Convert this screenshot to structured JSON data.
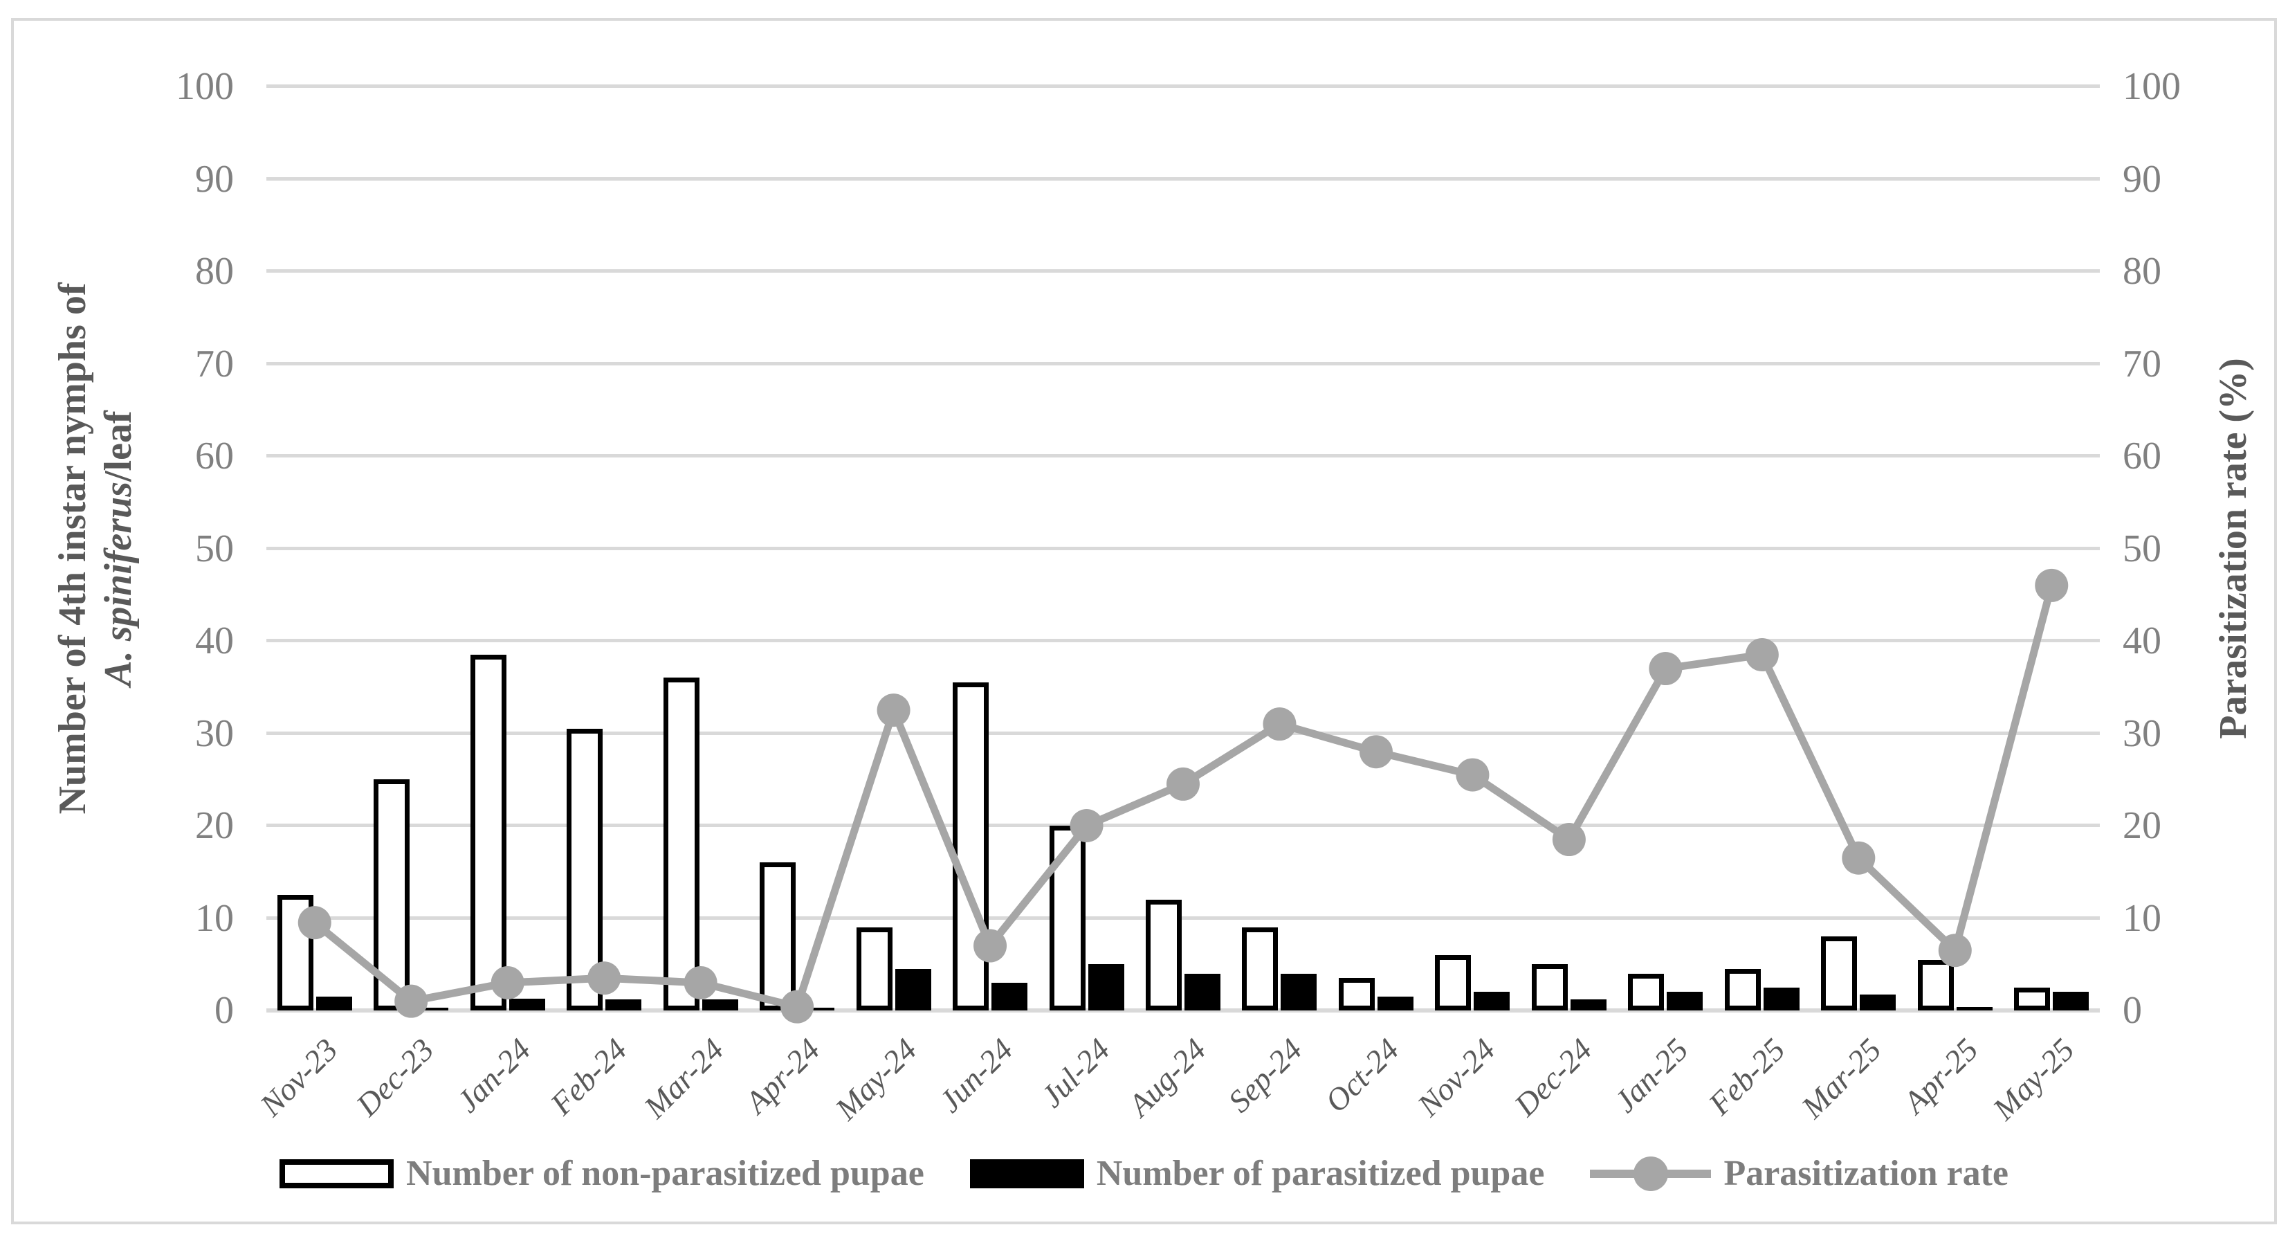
{
  "figure": {
    "left_axis_title_line1": "Number of 4th instar nymphs of",
    "left_axis_title_species_italic": "A. spiniferus",
    "left_axis_title_line2_rest": "/leaf",
    "right_axis_title": "Parasitization rate (%)"
  },
  "legend": {
    "non_parasitized_label": "Number of non-parasitized pupae",
    "parasitized_label": "Number of parasitized pupae",
    "rate_label": "Parasitization rate"
  },
  "colors": {
    "gridline": "#d9d9d9",
    "border": "#d9d9d9",
    "rate_line": "#a6a6a6",
    "tick_text": "#808080",
    "month_text": "#595959",
    "axis_title_text": "#595959",
    "legend_text": "#7d7d7d",
    "bar_outline": "#000000",
    "bar_white_fill": "#ffffff",
    "bar_black_fill": "#000000"
  },
  "chart_data": {
    "type": "bar",
    "subtype": "combo-bar-line-dual-axis",
    "categories": [
      "Nov-23",
      "Dec-23",
      "Jan-24",
      "Feb-24",
      "Mar-24",
      "Apr-24",
      "May-24",
      "Jun-24",
      "Jul-24",
      "Aug-24",
      "Sep-24",
      "Oct-24",
      "Nov-24",
      "Dec-24",
      "Jan-25",
      "Feb-25",
      "Mar-25",
      "Apr-25",
      "May-25"
    ],
    "series": [
      {
        "name": "Number of non-parasitized pupae",
        "type": "bar",
        "fill": "white-outlined",
        "axis": "left",
        "values": [
          12.5,
          25,
          38.5,
          30.5,
          36,
          16,
          9,
          35.5,
          20,
          12,
          9,
          3.5,
          6,
          5,
          4,
          4.5,
          8,
          5.5,
          2.5
        ]
      },
      {
        "name": "Number of parasitized pupae",
        "type": "bar",
        "fill": "black",
        "axis": "left",
        "values": [
          1.5,
          0.3,
          1.3,
          1.2,
          1.2,
          0.3,
          4.5,
          3,
          5,
          4,
          4,
          1.5,
          2,
          1.2,
          2,
          2.5,
          1.7,
          0.4,
          2
        ]
      },
      {
        "name": "Parasitization rate",
        "type": "line",
        "marker": "circle",
        "color": "#a6a6a6",
        "axis": "right",
        "values": [
          9.5,
          1,
          3,
          3.5,
          3,
          0.4,
          32.5,
          7,
          20,
          24.5,
          31,
          28,
          25.5,
          18.5,
          37,
          38.5,
          16.5,
          6.5,
          46
        ]
      }
    ],
    "title": "",
    "xlabel": "",
    "ylabel_left": "Number of 4th instar nymphs of A. spiniferus/leaf",
    "ylabel_right": "Parasitization rate (%)",
    "left_axis": {
      "min": 0,
      "max": 100,
      "tick_step": 10,
      "ticks": [
        0,
        10,
        20,
        30,
        40,
        50,
        60,
        70,
        80,
        90,
        100
      ]
    },
    "right_axis": {
      "min": 0,
      "max": 100,
      "tick_step": 10,
      "ticks": [
        0,
        10,
        20,
        30,
        40,
        50,
        60,
        70,
        80,
        90,
        100
      ]
    },
    "grid": "horizontal",
    "legend_position": "bottom"
  }
}
